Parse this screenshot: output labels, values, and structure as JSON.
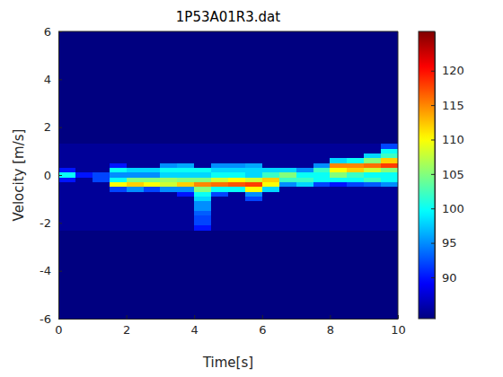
{
  "chart_data": {
    "type": "heatmap",
    "title": "1P53A01R3.dat",
    "x_label": "Time[s]",
    "y_label": "Velocity [m/s]",
    "xlim": [
      0,
      10
    ],
    "xticks": [
      0,
      2,
      4,
      6,
      8,
      10
    ],
    "ylim": [
      -6,
      6
    ],
    "yticks": [
      -6,
      -4,
      -2,
      0,
      2,
      4,
      6
    ],
    "x": [
      0.25,
      0.75,
      1.25,
      1.75,
      2.25,
      2.75,
      3.25,
      3.75,
      4.25,
      4.75,
      5.25,
      5.75,
      6.25,
      6.75,
      7.25,
      7.75,
      8.25,
      8.75,
      9.25,
      9.75
    ],
    "y": [
      1.2,
      1.0,
      0.8,
      0.6,
      0.4,
      0.2,
      0,
      -0.2,
      -0.4,
      -0.6,
      -0.8,
      -1.0,
      -1.2,
      -1.4,
      -1.6,
      -1.8,
      -2.0,
      -2.2
    ],
    "z": [
      [
        85,
        85,
        85,
        85,
        85,
        85,
        85,
        85,
        85,
        85,
        85,
        85,
        85,
        85,
        85,
        85,
        85,
        85,
        85,
        92
      ],
      [
        85,
        85,
        85,
        85,
        85,
        85,
        85,
        85,
        85,
        85,
        85,
        85,
        85,
        85,
        85,
        85,
        85,
        85,
        85,
        100
      ],
      [
        85,
        85,
        85,
        85,
        85,
        85,
        85,
        85,
        85,
        85,
        85,
        85,
        85,
        85,
        85,
        85,
        85,
        85,
        98,
        102
      ],
      [
        85,
        85,
        85,
        85,
        85,
        85,
        85,
        85,
        85,
        85,
        85,
        85,
        85,
        85,
        85,
        85,
        98,
        100,
        105,
        112
      ],
      [
        85,
        85,
        85,
        90,
        85,
        85,
        95,
        96,
        85,
        95,
        95,
        96,
        85,
        85,
        85,
        95,
        115,
        115,
        116,
        118
      ],
      [
        90,
        85,
        85,
        100,
        98,
        98,
        100,
        100,
        100,
        98,
        98,
        98,
        98,
        98,
        95,
        102,
        110,
        112,
        108,
        105
      ],
      [
        100,
        90,
        92,
        95,
        95,
        95,
        98,
        98,
        98,
        100,
        100,
        98,
        102,
        105,
        100,
        100,
        105,
        102,
        100,
        100
      ],
      [
        90,
        85,
        92,
        100,
        105,
        105,
        106,
        105,
        105,
        108,
        110,
        108,
        112,
        102,
        102,
        100,
        100,
        100,
        102,
        100
      ],
      [
        85,
        85,
        85,
        110,
        112,
        110,
        108,
        112,
        115,
        116,
        117,
        118,
        110,
        95,
        98,
        92,
        90,
        92,
        93,
        95
      ],
      [
        85,
        85,
        85,
        92,
        95,
        92,
        95,
        95,
        105,
        100,
        100,
        110,
        98,
        85,
        85,
        85,
        85,
        85,
        85,
        85
      ],
      [
        85,
        85,
        85,
        85,
        85,
        85,
        85,
        90,
        100,
        92,
        85,
        95,
        85,
        85,
        85,
        85,
        85,
        85,
        85,
        85
      ],
      [
        85,
        85,
        85,
        85,
        85,
        85,
        85,
        85,
        98,
        85,
        85,
        92,
        85,
        85,
        85,
        85,
        85,
        85,
        85,
        85
      ],
      [
        85,
        85,
        85,
        85,
        85,
        85,
        85,
        85,
        95,
        85,
        85,
        85,
        85,
        85,
        85,
        85,
        85,
        85,
        85,
        85
      ],
      [
        85,
        85,
        85,
        85,
        85,
        85,
        85,
        85,
        95,
        85,
        85,
        85,
        85,
        85,
        85,
        85,
        85,
        85,
        85,
        85
      ],
      [
        85,
        85,
        85,
        85,
        85,
        85,
        85,
        85,
        93,
        85,
        85,
        85,
        85,
        85,
        85,
        85,
        85,
        85,
        85,
        85
      ],
      [
        85,
        85,
        85,
        85,
        85,
        85,
        85,
        85,
        92,
        85,
        85,
        85,
        85,
        85,
        85,
        85,
        85,
        85,
        85,
        85
      ],
      [
        85,
        85,
        85,
        85,
        85,
        85,
        85,
        85,
        92,
        85,
        85,
        85,
        85,
        85,
        85,
        85,
        85,
        85,
        85,
        85
      ],
      [
        85,
        85,
        85,
        85,
        85,
        85,
        85,
        85,
        90,
        85,
        85,
        85,
        85,
        85,
        85,
        85,
        85,
        85,
        85,
        85
      ]
    ],
    "colorbar": {
      "range": [
        84,
        125.7
      ],
      "ticks": [
        90,
        95,
        100,
        105,
        110,
        115,
        120
      ]
    }
  }
}
